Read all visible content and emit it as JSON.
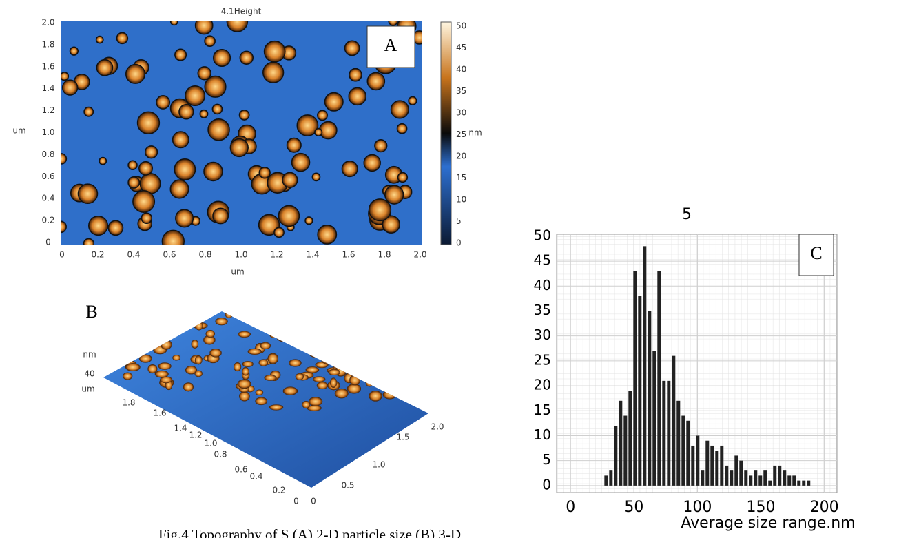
{
  "panel_a": {
    "title": "4.1Height",
    "label": "A",
    "y_axis_label": "um",
    "x_axis_label": "um",
    "colorbar_label": "nm",
    "y_ticks": [
      "0",
      "0.2",
      "0.4",
      "0.6",
      "0.8",
      "1.0",
      "1.2",
      "1.4",
      "1.6",
      "1.8",
      "2.0"
    ],
    "x_ticks": [
      "0",
      "0.2",
      "0.4",
      "0.6",
      "0.8",
      "1.0",
      "1.2",
      "1.4",
      "1.6",
      "1.8",
      "2.0"
    ],
    "colorbar_ticks": [
      "0",
      "5",
      "10",
      "15",
      "20",
      "25",
      "30",
      "35",
      "40",
      "45",
      "50"
    ]
  },
  "panel_b": {
    "label": "B",
    "z_unit": "nm",
    "z_tick": "40",
    "y_unit": "um",
    "y_ticks": [
      "1.8",
      "1.6",
      "1.4",
      "1.2",
      "1.0",
      "0.8",
      "0.6",
      "0.4",
      "0.2",
      "0"
    ],
    "x_ticks": [
      "0",
      "0.5",
      "1.0",
      "1.5",
      "2.0"
    ]
  },
  "chart_data": {
    "type": "bar",
    "title": "5",
    "label": "C",
    "x_label": "Average size range.nm",
    "x": [
      28,
      31.8,
      35.6,
      39.4,
      43.2,
      47,
      50.8,
      54.6,
      58.4,
      62.2,
      66,
      69.8,
      73.6,
      77.4,
      81.2,
      85,
      88.8,
      92.6,
      96.4,
      100.2,
      104,
      107.8,
      111.6,
      115.4,
      119.2,
      123,
      126.8,
      130.6,
      134.4,
      138.2,
      142,
      145.8,
      149.6,
      153.4,
      157.2,
      161,
      164.8,
      168.6,
      172.4,
      176.2,
      180,
      183.8,
      187.6
    ],
    "values": [
      2,
      3,
      12,
      17,
      14,
      19,
      43,
      38,
      48,
      35,
      27,
      43,
      21,
      21,
      26,
      17,
      14,
      13,
      8,
      10,
      3,
      9,
      8,
      7,
      8,
      4,
      3,
      6,
      5,
      3,
      2,
      3,
      2,
      3,
      1,
      4,
      4,
      3,
      2,
      2,
      1,
      1,
      1
    ],
    "color": "#222222",
    "xlim": [
      -11,
      210
    ],
    "ylim": [
      -1.4,
      50.4
    ],
    "xticks": [
      0,
      50,
      100,
      150,
      200
    ],
    "yticks": [
      0,
      5,
      10,
      15,
      20,
      25,
      30,
      35,
      40,
      45,
      50
    ],
    "grid": true
  },
  "caption": "Fig.4 Topography of S (A) 2-D particle size (B) 3-D"
}
